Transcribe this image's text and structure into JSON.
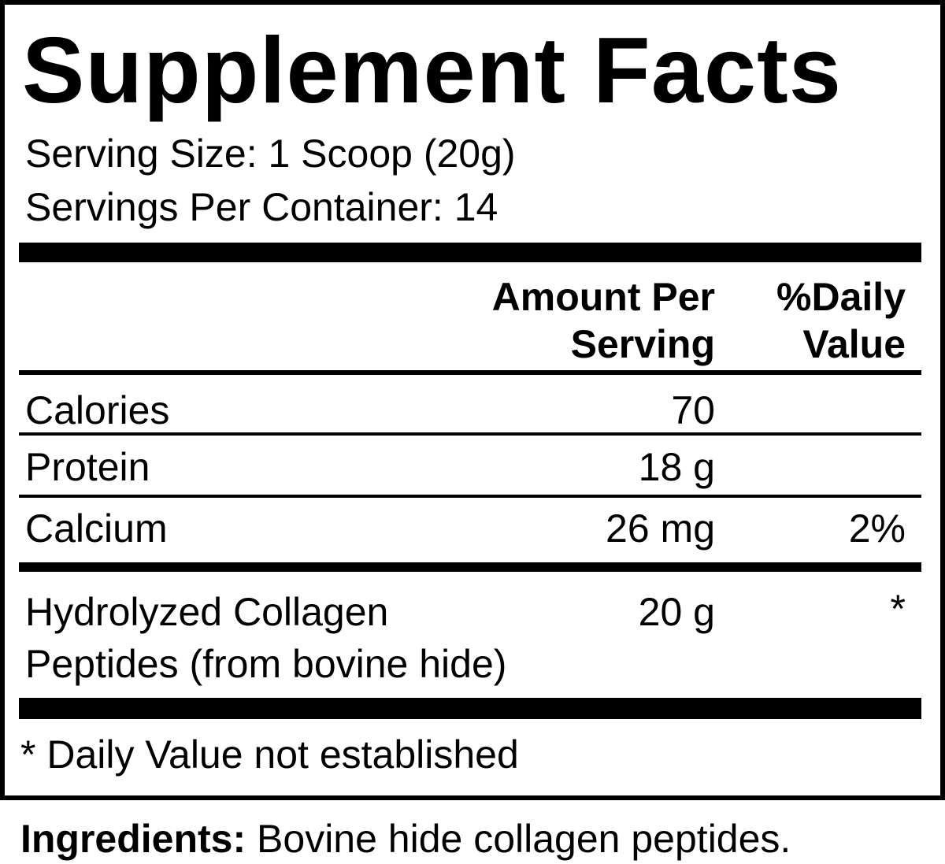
{
  "title": "Supplement Facts",
  "serving_size": "Serving Size: 1 Scoop (20g)",
  "servings_per_container": "Servings Per Container: 14",
  "header": {
    "amount_line1": "Amount Per",
    "amount_line2": "Serving",
    "dv_line1": "%Daily",
    "dv_line2": "Value"
  },
  "rows": [
    {
      "name": "Calories",
      "amount": "70",
      "dv": ""
    },
    {
      "name": "Protein",
      "amount": "18 g",
      "dv": ""
    },
    {
      "name": "Calcium",
      "amount": "26 mg",
      "dv": "2%"
    },
    {
      "name_line1": "Hydrolyzed Collagen",
      "name_line2": "Peptides (from bovine hide)",
      "amount": "20 g",
      "dv": "*"
    }
  ],
  "footnote": "* Daily Value not established",
  "ingredients": {
    "label": "Ingredients:",
    "text": " Bovine hide collagen peptides."
  }
}
